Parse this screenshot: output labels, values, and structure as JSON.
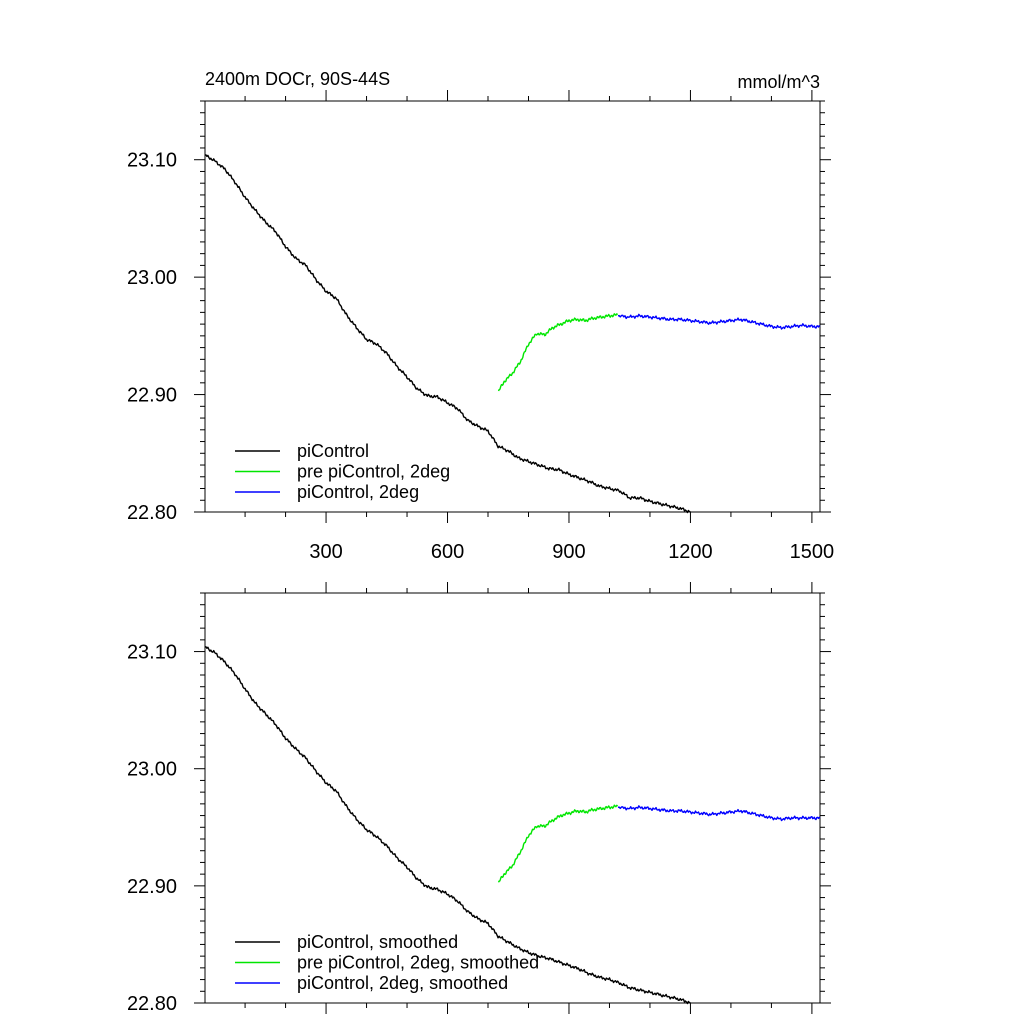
{
  "chart_data": [
    {
      "type": "line",
      "title": "2400m DOCr, 90S-44S",
      "units": "mmol/m^3",
      "xlim": [
        1,
        1520
      ],
      "ylim": [
        22.8,
        23.15
      ],
      "xticks": [
        300,
        600,
        900,
        1200,
        1500
      ],
      "xtick_labels": [
        "300",
        "600",
        "900",
        "1200",
        "1500"
      ],
      "yticks": [
        22.8,
        22.9,
        23.0,
        23.1
      ],
      "ytick_labels": [
        "22.80",
        "22.90",
        "23.00",
        "23.10"
      ],
      "grid": false,
      "legend_position": "bottom-left",
      "series": [
        {
          "name": "piControl",
          "color": "#000000",
          "x": [
            1,
            25,
            50,
            75,
            100,
            125,
            150,
            175,
            200,
            225,
            250,
            275,
            300,
            325,
            350,
            375,
            400,
            425,
            450,
            475,
            500,
            525,
            550,
            575,
            600,
            625,
            650,
            675,
            700,
            725,
            750,
            775,
            800,
            825,
            850,
            875,
            900,
            925,
            950,
            975,
            1000,
            1025,
            1050,
            1075,
            1100,
            1125,
            1150,
            1175,
            1200
          ],
          "y": [
            23.104,
            23.099,
            23.092,
            23.081,
            23.068,
            23.057,
            23.047,
            23.039,
            23.026,
            23.016,
            23.01,
            22.998,
            22.988,
            22.982,
            22.968,
            22.957,
            22.947,
            22.943,
            22.935,
            22.924,
            22.915,
            22.905,
            22.899,
            22.898,
            22.893,
            22.888,
            22.878,
            22.873,
            22.869,
            22.856,
            22.852,
            22.846,
            22.843,
            22.84,
            22.837,
            22.836,
            22.832,
            22.829,
            22.826,
            22.822,
            22.82,
            22.818,
            22.812,
            22.812,
            22.809,
            22.807,
            22.805,
            22.803,
            22.8
          ]
        },
        {
          "name": "pre piControl, 2deg",
          "color": "#00e600",
          "x": [
            726,
            740,
            760,
            780,
            800,
            820,
            840,
            860,
            880,
            900,
            920,
            940,
            960,
            980,
            1000,
            1020
          ],
          "y": [
            22.903,
            22.911,
            22.918,
            22.928,
            22.943,
            22.952,
            22.951,
            22.957,
            22.96,
            22.963,
            22.964,
            22.963,
            22.965,
            22.966,
            22.967,
            22.968
          ]
        },
        {
          "name": "piControl, 2deg",
          "color": "#0000ff",
          "x": [
            1021,
            1050,
            1075,
            1100,
            1125,
            1150,
            1175,
            1200,
            1225,
            1250,
            1275,
            1300,
            1325,
            1350,
            1375,
            1400,
            1425,
            1450,
            1475,
            1500,
            1520
          ],
          "y": [
            22.967,
            22.966,
            22.967,
            22.966,
            22.965,
            22.964,
            22.964,
            22.963,
            22.962,
            22.961,
            22.962,
            22.963,
            22.964,
            22.962,
            22.96,
            22.958,
            22.957,
            22.958,
            22.959,
            22.958,
            22.958
          ]
        }
      ]
    },
    {
      "type": "line",
      "title": "",
      "units": "",
      "xlim": [
        1,
        1520
      ],
      "ylim": [
        22.8,
        23.15
      ],
      "xticks": [
        300,
        600,
        900,
        1200,
        1500
      ],
      "xtick_labels": [],
      "yticks": [
        22.8,
        22.9,
        23.0,
        23.1
      ],
      "ytick_labels": [
        "22.80",
        "22.90",
        "23.00",
        "23.10"
      ],
      "grid": false,
      "legend_position": "bottom-left",
      "series": [
        {
          "name": "piControl, smoothed",
          "color": "#000000",
          "x": [
            1,
            25,
            50,
            75,
            100,
            125,
            150,
            175,
            200,
            225,
            250,
            275,
            300,
            325,
            350,
            375,
            400,
            425,
            450,
            475,
            500,
            525,
            550,
            575,
            600,
            625,
            650,
            675,
            700,
            725,
            750,
            775,
            800,
            825,
            850,
            875,
            900,
            925,
            950,
            975,
            1000,
            1025,
            1050,
            1075,
            1100,
            1125,
            1150,
            1175,
            1200
          ],
          "y": [
            23.104,
            23.099,
            23.091,
            23.081,
            23.068,
            23.056,
            23.047,
            23.038,
            23.026,
            23.017,
            23.009,
            22.998,
            22.988,
            22.981,
            22.968,
            22.957,
            22.948,
            22.942,
            22.934,
            22.924,
            22.916,
            22.906,
            22.899,
            22.897,
            22.893,
            22.887,
            22.878,
            22.872,
            22.868,
            22.857,
            22.852,
            22.847,
            22.843,
            22.84,
            22.838,
            22.835,
            22.832,
            22.829,
            22.825,
            22.822,
            22.82,
            22.817,
            22.813,
            22.811,
            22.809,
            22.807,
            22.805,
            22.803,
            22.8
          ]
        },
        {
          "name": "pre piControl, 2deg, smoothed",
          "color": "#00e600",
          "x": [
            726,
            740,
            760,
            780,
            800,
            820,
            840,
            860,
            880,
            900,
            920,
            940,
            960,
            980,
            1000,
            1020
          ],
          "y": [
            22.903,
            22.91,
            22.917,
            22.929,
            22.943,
            22.951,
            22.951,
            22.956,
            22.96,
            22.962,
            22.964,
            22.963,
            22.965,
            22.966,
            22.967,
            22.968
          ]
        },
        {
          "name": "piControl, 2deg, smoothed",
          "color": "#0000ff",
          "x": [
            1021,
            1050,
            1075,
            1100,
            1125,
            1150,
            1175,
            1200,
            1225,
            1250,
            1275,
            1300,
            1325,
            1350,
            1375,
            1400,
            1425,
            1450,
            1475,
            1500,
            1520
          ],
          "y": [
            22.967,
            22.966,
            22.967,
            22.966,
            22.965,
            22.964,
            22.964,
            22.963,
            22.962,
            22.961,
            22.962,
            22.963,
            22.964,
            22.962,
            22.96,
            22.958,
            22.957,
            22.958,
            22.958,
            22.958,
            22.958
          ]
        }
      ]
    }
  ]
}
